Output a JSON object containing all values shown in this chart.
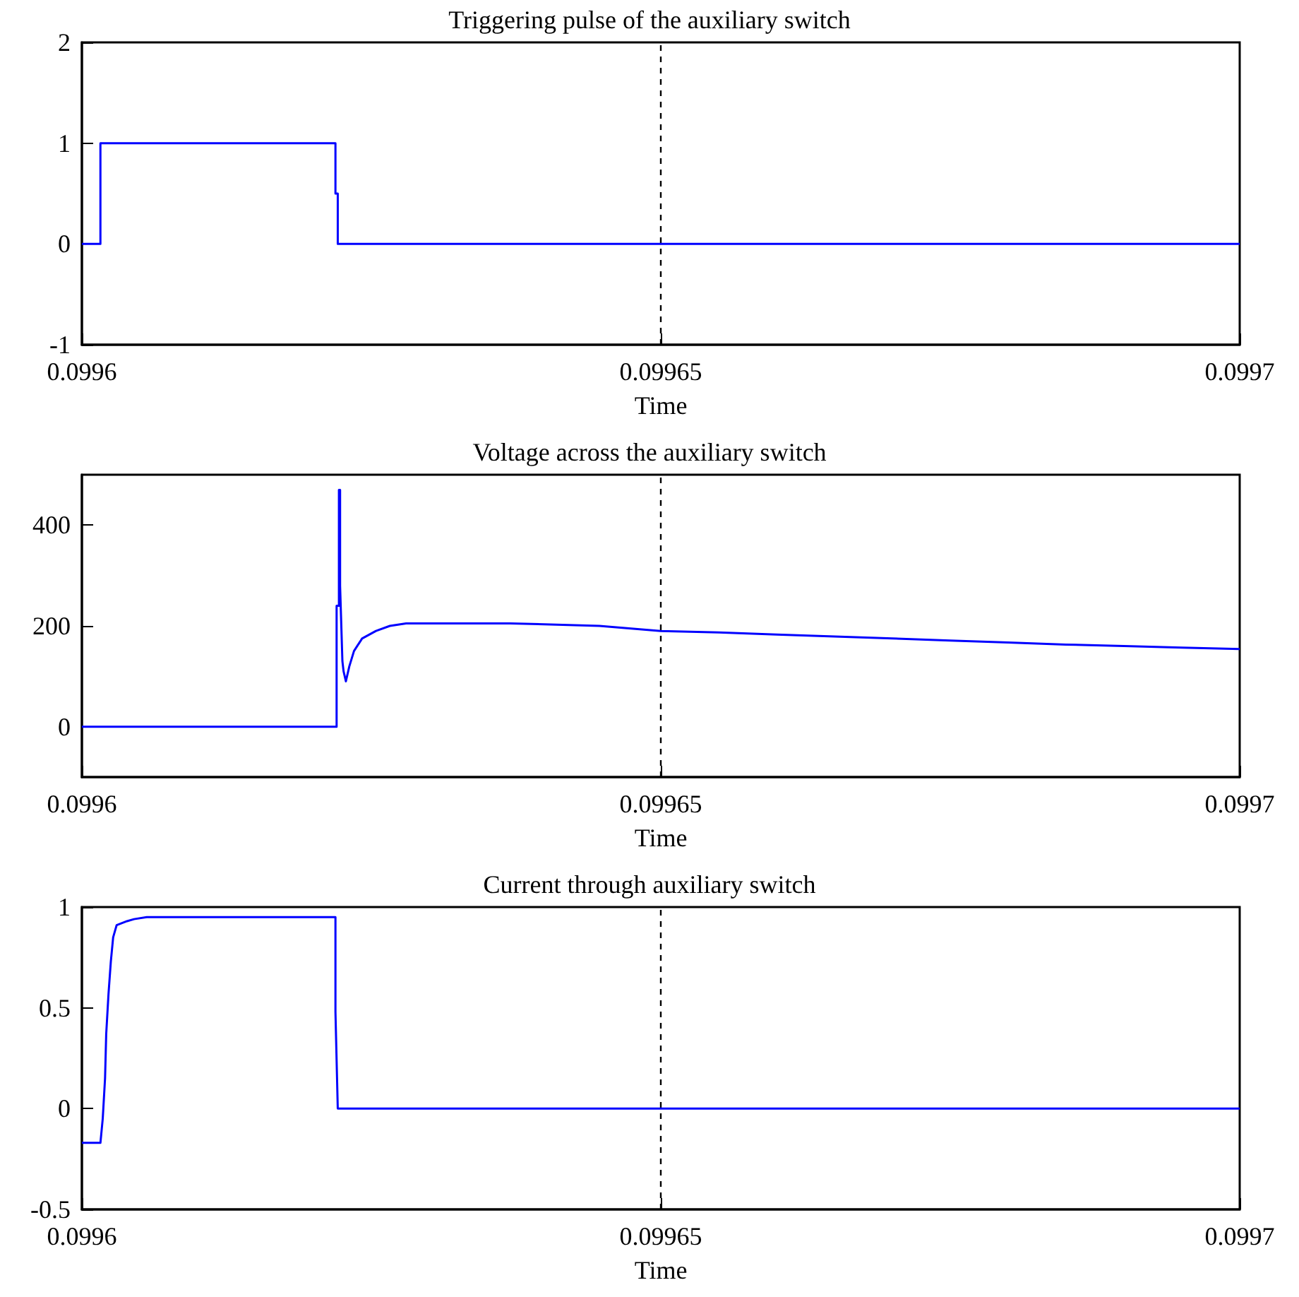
{
  "chart_data": [
    {
      "type": "line",
      "title": "Triggering pulse of the auxiliary switch",
      "xlabel": "Time",
      "xlim": [
        0.0996,
        0.0997
      ],
      "xticks": [
        0.0996,
        0.09965,
        0.0997
      ],
      "ylim": [
        -1,
        2
      ],
      "yticks": [
        -1,
        0,
        1,
        2
      ],
      "marker": "none",
      "line_style": "solid",
      "ref_lines": [
        {
          "axis": "x",
          "value": 0.09965,
          "line_style": "dashed",
          "color": "#000000"
        }
      ],
      "series": [
        {
          "color": "#0000ff",
          "x": [
            0.0996,
            0.0996016,
            0.0996016,
            0.0996219,
            0.0996219,
            0.0996221,
            0.0996221,
            0.0997
          ],
          "values": [
            0,
            0,
            1,
            1,
            0.5,
            0.5,
            0,
            0
          ]
        }
      ]
    },
    {
      "type": "line",
      "title": "Voltage across the auxiliary switch",
      "xlabel": "Time",
      "xlim": [
        0.0996,
        0.0997
      ],
      "xticks": [
        0.0996,
        0.09965,
        0.0997
      ],
      "ylim": [
        -100,
        500
      ],
      "yticks": [
        0,
        200,
        400
      ],
      "marker": "none",
      "line_style": "solid",
      "ref_lines": [
        {
          "axis": "x",
          "value": 0.09965,
          "line_style": "dashed",
          "color": "#000000"
        }
      ],
      "series": [
        {
          "color": "#0000ff",
          "x": [
            0.0996,
            0.099622,
            0.099622,
            0.0996222,
            0.0996222,
            0.0996223,
            0.0996223,
            0.0996225,
            0.0996226,
            0.0996228,
            0.0996231,
            0.0996235,
            0.0996242,
            0.0996254,
            0.0996266,
            0.099628,
            0.099637,
            0.0996447,
            0.09965,
            0.099655,
            0.09966,
            0.099665,
            0.09967,
            0.099675,
            0.09968,
            0.099685,
            0.09969,
            0.099695,
            0.0997
          ],
          "values": [
            0,
            0,
            240,
            240,
            470,
            470,
            280,
            130,
            110,
            90,
            120,
            150,
            175,
            190,
            200,
            205,
            205,
            200,
            190,
            187,
            183,
            179,
            175,
            171,
            167,
            163,
            160,
            157,
            154
          ]
        }
      ]
    },
    {
      "type": "line",
      "title": "Current through auxiliary switch",
      "xlabel": "Time",
      "xlim": [
        0.0996,
        0.0997
      ],
      "xticks": [
        0.0996,
        0.09965,
        0.0997
      ],
      "ylim": [
        -0.5,
        1
      ],
      "yticks": [
        -0.5,
        0,
        0.5,
        1
      ],
      "marker": "none",
      "line_style": "solid",
      "ref_lines": [
        {
          "axis": "x",
          "value": 0.09965,
          "line_style": "dashed",
          "color": "#000000"
        }
      ],
      "series": [
        {
          "color": "#0000ff",
          "x": [
            0.0996,
            0.0996016,
            0.0996018,
            0.099602,
            0.0996021,
            0.0996023,
            0.0996025,
            0.0996027,
            0.099603,
            0.0996039,
            0.0996045,
            0.0996056,
            0.0996219,
            0.0996219,
            0.0996221,
            0.0997
          ],
          "values": [
            -0.17,
            -0.17,
            -0.05,
            0.15,
            0.37,
            0.57,
            0.73,
            0.85,
            0.91,
            0.93,
            0.94,
            0.95,
            0.95,
            0.48,
            0,
            0
          ]
        }
      ]
    }
  ]
}
